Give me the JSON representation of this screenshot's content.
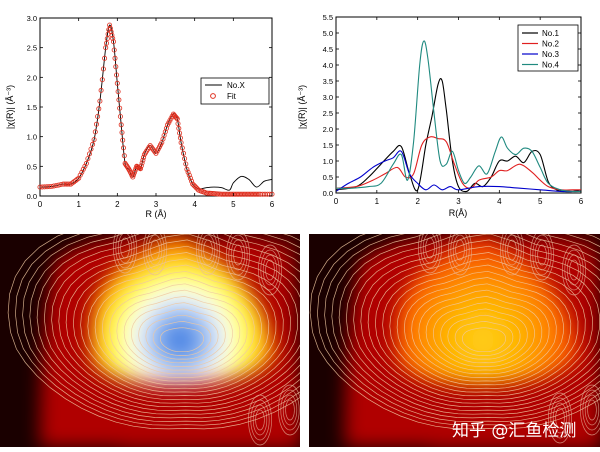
{
  "chart_data": [
    {
      "type": "line",
      "title": "",
      "xlabel": "R (Å)",
      "ylabel": "|χ(R)| (Å⁻³)",
      "xlim": [
        0,
        6
      ],
      "ylim": [
        0,
        3.0
      ],
      "xticks": [
        "0",
        "1",
        "2",
        "3",
        "4",
        "5",
        "6"
      ],
      "yticks": [
        "0.0",
        "0.5",
        "1.0",
        "1.5",
        "2.0",
        "2.5",
        "3.0"
      ],
      "legend": "top-right",
      "series": [
        {
          "name": "No.X",
          "style": "line",
          "color": "#000000",
          "x": [
            0.0,
            0.3,
            0.6,
            0.8,
            1.0,
            1.2,
            1.4,
            1.55,
            1.7,
            1.8,
            1.9,
            2.0,
            2.1,
            2.2,
            2.3,
            2.4,
            2.5,
            2.6,
            2.7,
            2.85,
            3.0,
            3.15,
            3.3,
            3.45,
            3.55,
            3.65,
            3.8,
            3.95,
            4.1,
            4.3,
            4.5,
            4.7,
            4.9,
            5.0,
            5.2,
            5.4,
            5.6,
            5.8,
            6.0
          ],
          "y": [
            0.15,
            0.16,
            0.2,
            0.2,
            0.3,
            0.55,
            0.95,
            1.6,
            2.5,
            2.88,
            2.6,
            1.9,
            1.2,
            0.55,
            0.45,
            0.32,
            0.5,
            0.46,
            0.7,
            0.85,
            0.72,
            0.9,
            1.2,
            1.38,
            1.3,
            0.9,
            0.45,
            0.2,
            0.12,
            0.14,
            0.15,
            0.14,
            0.1,
            0.22,
            0.33,
            0.28,
            0.15,
            0.25,
            0.28
          ]
        },
        {
          "name": "Fit",
          "style": "circles",
          "color": "#e03020",
          "x": [
            0.0,
            0.3,
            0.6,
            0.8,
            1.0,
            1.2,
            1.4,
            1.55,
            1.7,
            1.8,
            1.9,
            2.0,
            2.1,
            2.2,
            2.3,
            2.4,
            2.5,
            2.6,
            2.7,
            2.85,
            3.0,
            3.15,
            3.3,
            3.45,
            3.55,
            3.65,
            3.8,
            3.95,
            4.1,
            4.3,
            4.5,
            4.7,
            4.9,
            5.1,
            5.3,
            5.5,
            5.7,
            6.0
          ],
          "y": [
            0.15,
            0.16,
            0.2,
            0.2,
            0.3,
            0.55,
            0.95,
            1.6,
            2.5,
            2.88,
            2.6,
            1.9,
            1.2,
            0.55,
            0.45,
            0.32,
            0.5,
            0.46,
            0.7,
            0.85,
            0.72,
            0.9,
            1.2,
            1.38,
            1.3,
            0.9,
            0.45,
            0.2,
            0.1,
            0.05,
            0.04,
            0.03,
            0.03,
            0.03,
            0.03,
            0.03,
            0.03,
            0.03
          ]
        }
      ]
    },
    {
      "type": "line",
      "title": "",
      "xlabel": "R(Å)",
      "ylabel": "|χ(R)| (Å⁻³)",
      "xlim": [
        0,
        6
      ],
      "ylim": [
        0,
        5.5
      ],
      "xticks": [
        "0",
        "1",
        "2",
        "3",
        "4",
        "5",
        "6"
      ],
      "yticks": [
        "0.0",
        "0.5",
        "1.0",
        "1.5",
        "2.0",
        "2.5",
        "3.0",
        "3.5",
        "4.0",
        "4.5",
        "5.0",
        "5.5"
      ],
      "legend": "top-right",
      "series": [
        {
          "name": "No.1",
          "color": "#000000",
          "x": [
            0.0,
            0.5,
            0.8,
            1.1,
            1.4,
            1.6,
            1.8,
            2.0,
            2.2,
            2.35,
            2.5,
            2.6,
            2.7,
            2.85,
            3.0,
            3.2,
            3.4,
            3.6,
            3.8,
            4.0,
            4.2,
            4.4,
            4.6,
            4.8,
            5.0,
            5.2,
            5.4,
            5.6,
            5.8,
            6.0
          ],
          "y": [
            0.1,
            0.2,
            0.5,
            0.9,
            1.3,
            1.45,
            0.6,
            0.1,
            1.5,
            2.4,
            3.4,
            3.5,
            2.6,
            1.0,
            0.2,
            0.05,
            0.3,
            0.2,
            0.5,
            1.0,
            1.0,
            1.15,
            0.95,
            1.3,
            1.2,
            0.35,
            0.1,
            0.05,
            0.05,
            0.1
          ]
        },
        {
          "name": "No.2",
          "color": "#e02020",
          "x": [
            0.0,
            0.5,
            0.9,
            1.2,
            1.5,
            1.7,
            1.9,
            2.1,
            2.3,
            2.5,
            2.7,
            2.9,
            3.1,
            3.3,
            3.5,
            3.8,
            4.0,
            4.2,
            4.5,
            4.8,
            5.0,
            5.2,
            5.5,
            5.8,
            6.0
          ],
          "y": [
            0.15,
            0.2,
            0.4,
            0.6,
            0.8,
            0.5,
            0.6,
            1.5,
            1.75,
            1.7,
            1.6,
            0.9,
            0.3,
            0.15,
            0.4,
            0.5,
            0.7,
            0.7,
            0.9,
            0.65,
            0.4,
            0.2,
            0.1,
            0.1,
            0.1
          ]
        },
        {
          "name": "No.3",
          "color": "#0000cc",
          "x": [
            0.0,
            0.3,
            0.6,
            0.9,
            1.2,
            1.4,
            1.6,
            1.8,
            2.0,
            2.2,
            2.4,
            2.6,
            2.8,
            3.0,
            3.5,
            4.0,
            4.5,
            5.0,
            5.5,
            6.0
          ],
          "y": [
            0.05,
            0.3,
            0.5,
            0.8,
            1.0,
            1.1,
            1.3,
            0.6,
            0.3,
            0.1,
            0.25,
            0.1,
            0.2,
            0.1,
            0.2,
            0.2,
            0.15,
            0.1,
            0.05,
            0.05
          ]
        },
        {
          "name": "No.4",
          "color": "#208a80",
          "x": [
            0.0,
            0.4,
            0.8,
            1.1,
            1.4,
            1.6,
            1.75,
            1.9,
            2.05,
            2.15,
            2.25,
            2.4,
            2.55,
            2.7,
            2.85,
            3.0,
            3.15,
            3.3,
            3.5,
            3.7,
            3.9,
            4.05,
            4.2,
            4.4,
            4.6,
            4.8,
            5.0,
            5.2,
            5.5,
            5.8,
            6.0
          ],
          "y": [
            0.15,
            0.15,
            0.2,
            0.3,
            0.9,
            1.2,
            0.4,
            1.6,
            4.0,
            4.75,
            4.2,
            2.5,
            1.0,
            0.9,
            1.3,
            0.7,
            0.3,
            0.5,
            0.85,
            0.6,
            1.3,
            1.75,
            1.4,
            1.2,
            1.4,
            1.3,
            0.8,
            0.3,
            0.1,
            0.05,
            0.05
          ]
        }
      ]
    },
    {
      "type": "heatmap",
      "title": "",
      "colormap": "black-red-yellow-white-blue",
      "contours": true,
      "center_color": "#3f7fe0"
    },
    {
      "type": "heatmap",
      "title": "",
      "colormap": "black-red-orange-yellow",
      "contours": true,
      "center_color": "#ffd21a"
    }
  ],
  "watermark": "知乎 @汇鱼检测"
}
